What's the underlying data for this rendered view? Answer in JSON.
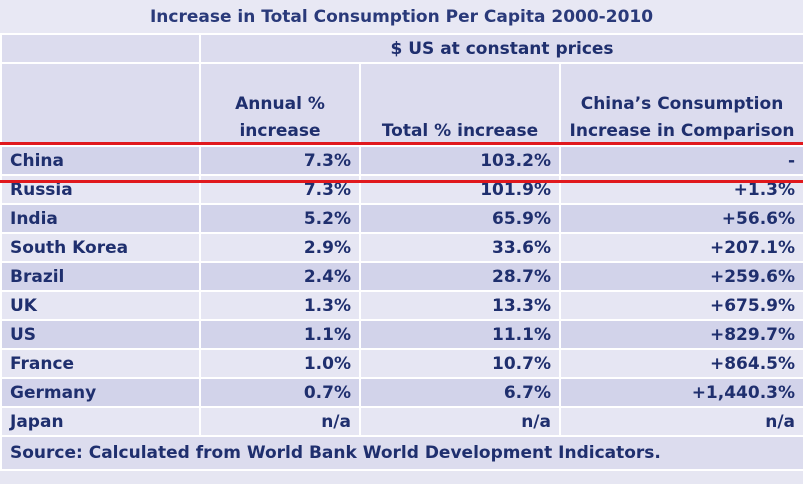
{
  "chart_data": {
    "type": "table",
    "title": "Increase in Total Consumption Per Capita 2000-2010",
    "units_header": "$ US at constant prices",
    "columns": [
      "Annual % increase",
      "Total % increase",
      "China’s Consumption Increase in Comparison"
    ],
    "rows": [
      {
        "country": "China",
        "annual": "7.3%",
        "total": "103.2%",
        "comparison": "-"
      },
      {
        "country": "Russia",
        "annual": "7.3%",
        "total": "101.9%",
        "comparison": "+1.3%"
      },
      {
        "country": "India",
        "annual": "5.2%",
        "total": "65.9%",
        "comparison": "+56.6%"
      },
      {
        "country": "South Korea",
        "annual": "2.9%",
        "total": "33.6%",
        "comparison": "+207.1%"
      },
      {
        "country": "Brazil",
        "annual": "2.4%",
        "total": "28.7%",
        "comparison": "+259.6%"
      },
      {
        "country": "UK",
        "annual": "1.3%",
        "total": "13.3%",
        "comparison": "+675.9%"
      },
      {
        "country": "US",
        "annual": "1.1%",
        "total": "11.1%",
        "comparison": "+829.7%"
      },
      {
        "country": "France",
        "annual": "1.0%",
        "total": "10.7%",
        "comparison": "+864.5%"
      },
      {
        "country": "Germany",
        "annual": "0.7%",
        "total": "6.7%",
        "comparison": "+1,440.3%"
      },
      {
        "country": "Japan",
        "annual": "n/a",
        "total": "n/a",
        "comparison": "n/a"
      }
    ],
    "source": "Source: Calculated from World Bank World Development Indicators."
  },
  "colors": {
    "highlight_line": "#e0181d",
    "text": "#1f2f6e"
  }
}
